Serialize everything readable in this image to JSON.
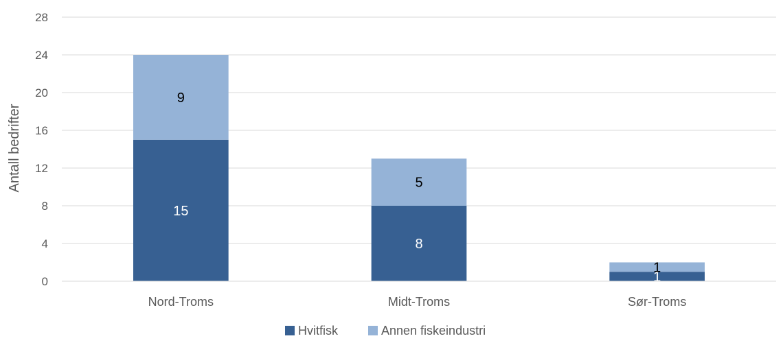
{
  "chart_data": {
    "type": "bar",
    "stacked": true,
    "categories": [
      "Nord-Troms",
      "Midt-Troms",
      "Sør-Troms"
    ],
    "series": [
      {
        "name": "Hvitfisk",
        "values": [
          15,
          8,
          1
        ],
        "color": "#376092",
        "label_color": "#ffffff"
      },
      {
        "name": "Annen fiskeindustri",
        "values": [
          9,
          5,
          1
        ],
        "color": "#95b3d7",
        "label_color": "#000000"
      }
    ],
    "title": "",
    "xlabel": "",
    "ylabel": "Antall bedrifter",
    "ylim": [
      0,
      28
    ],
    "yticks": [
      0,
      4,
      8,
      12,
      16,
      20,
      24,
      28
    ],
    "grid": true,
    "legend_position": "bottom",
    "data_labels": true
  }
}
